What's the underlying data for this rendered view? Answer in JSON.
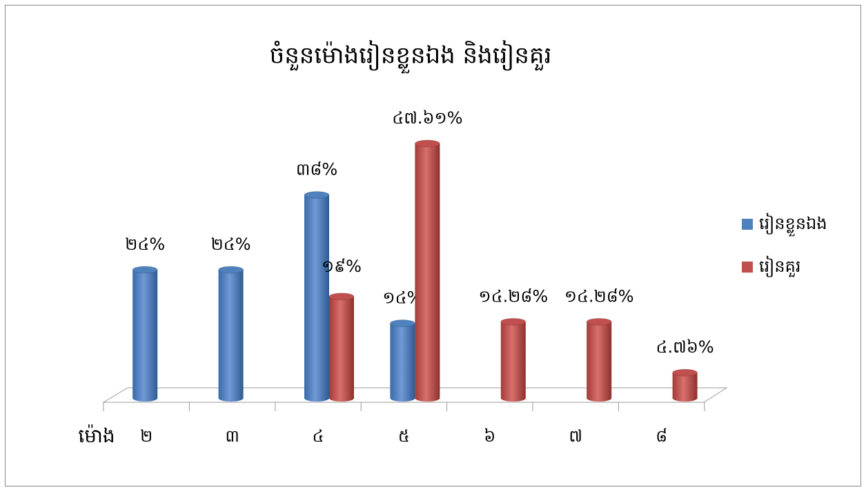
{
  "chart_data": {
    "type": "bar",
    "title": "ចំនួនម៉ោងរៀនខ្លួនឯង និងរៀនគួរ",
    "x_label": "ម៉ោង",
    "categories": [
      "២",
      "៣",
      "៤",
      "៥",
      "៦",
      "៧",
      "៨"
    ],
    "series": [
      {
        "name": "រៀនខ្លួនឯង",
        "color": "#4f81bd",
        "values": [
          24,
          24,
          38,
          14,
          null,
          null,
          null
        ],
        "value_labels": [
          "២៤%",
          "២៤%",
          "៣៨%",
          "១៤%",
          null,
          null,
          null
        ]
      },
      {
        "name": "រៀនគួរ",
        "color": "#c0504d",
        "values": [
          null,
          null,
          19,
          47.61,
          14.28,
          14.28,
          4.76
        ],
        "value_labels": [
          null,
          null,
          "១៩%",
          "៤៧.៦១%",
          "១៤.២៨%",
          "១៤.២៨%",
          "៤.៧៦%"
        ]
      }
    ],
    "legend": "right"
  }
}
